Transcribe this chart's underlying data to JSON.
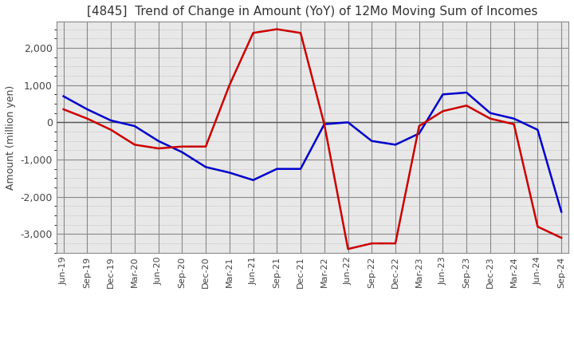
{
  "title": "[4845]  Trend of Change in Amount (YoY) of 12Mo Moving Sum of Incomes",
  "ylabel": "Amount (million yen)",
  "ylim": [
    -3500,
    2700
  ],
  "yticks": [
    -3000,
    -2000,
    -1000,
    0,
    1000,
    2000
  ],
  "plot_bg_color": "#eaeaea",
  "fig_bg_color": "#ffffff",
  "grid_color": "#ffffff",
  "grid_major_color": "#aaaaaa",
  "x_labels": [
    "Jun-19",
    "Sep-19",
    "Dec-19",
    "Mar-20",
    "Jun-20",
    "Sep-20",
    "Dec-20",
    "Mar-21",
    "Jun-21",
    "Sep-21",
    "Dec-21",
    "Mar-22",
    "Jun-22",
    "Sep-22",
    "Dec-22",
    "Mar-23",
    "Jun-23",
    "Sep-23",
    "Dec-23",
    "Mar-24",
    "Jun-24",
    "Sep-24"
  ],
  "ordinary_income": [
    700,
    350,
    50,
    -100,
    -500,
    -800,
    -1200,
    -1350,
    -1550,
    -1250,
    -1250,
    -50,
    0,
    -500,
    -600,
    -300,
    750,
    800,
    250,
    100,
    -200,
    -2400
  ],
  "net_income": [
    350,
    100,
    -200,
    -600,
    -700,
    -650,
    -650,
    1000,
    2400,
    2500,
    2400,
    -50,
    -3400,
    -3250,
    -3250,
    -100,
    300,
    450,
    100,
    -50,
    -2800,
    -3100
  ],
  "ordinary_color": "#0000cc",
  "net_color": "#cc0000",
  "line_width": 1.8
}
